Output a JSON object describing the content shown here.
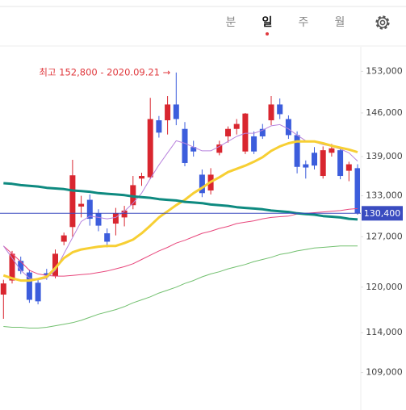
{
  "tabs": [
    "분",
    "일",
    "주",
    "월"
  ],
  "active_tab": 1,
  "chart_data": {
    "type": "candlestick",
    "log_scale": true,
    "ylim": [
      104500,
      157000
    ],
    "yticks": [
      {
        "value": 153000,
        "label": "153,000"
      },
      {
        "value": 146000,
        "label": "146,000"
      },
      {
        "value": 139000,
        "label": "139,000"
      },
      {
        "value": 133000,
        "label": "133,000"
      },
      {
        "value": 127000,
        "label": "127,000"
      },
      {
        "value": 120000,
        "label": "120,000"
      },
      {
        "value": 114000,
        "label": "114,000"
      },
      {
        "value": 109000,
        "label": "109,000"
      }
    ],
    "up_color": "#d9262f",
    "down_color": "#3c5ddc",
    "candles": {
      "open": [
        119000,
        120900,
        123600,
        122000,
        120600,
        121900,
        121500,
        126300,
        128400,
        131400,
        132400,
        130400,
        127500,
        128900,
        129800,
        131600,
        135600,
        135800,
        144800,
        144800,
        147400,
        143400,
        140500,
        136200,
        133800,
        139600,
        142200,
        143400,
        139800,
        142200,
        143400,
        144800,
        147400,
        145000,
        142400,
        137800,
        139600,
        136000,
        139600,
        140000,
        136800,
        137200
      ],
      "high": [
        121000,
        125000,
        124200,
        122400,
        121000,
        122500,
        125200,
        127600,
        138500,
        133000,
        133200,
        131000,
        128200,
        131200,
        131500,
        136000,
        136500,
        148500,
        145500,
        148800,
        152800,
        144500,
        141500,
        137000,
        137200,
        141500,
        143800,
        145000,
        146000,
        143000,
        144200,
        148800,
        148400,
        145600,
        143000,
        138400,
        140500,
        140600,
        141000,
        140500,
        138200,
        137800
      ],
      "low": [
        115800,
        120500,
        121800,
        117900,
        117700,
        121000,
        121200,
        125800,
        127000,
        129800,
        128600,
        127800,
        125500,
        127200,
        128500,
        131000,
        134500,
        135500,
        142000,
        142500,
        144000,
        137500,
        139000,
        132800,
        133200,
        139200,
        141200,
        142500,
        139400,
        139400,
        141800,
        144000,
        145000,
        141800,
        136400,
        135600,
        137000,
        135600,
        139000,
        135500,
        135200,
        130200
      ],
      "close": [
        120500,
        124600,
        122200,
        118300,
        118100,
        121600,
        124600,
        127200,
        136100,
        131800,
        129600,
        128600,
        126300,
        130400,
        130800,
        134600,
        136000,
        145000,
        142800,
        147400,
        145000,
        138000,
        139800,
        133400,
        136200,
        140900,
        143400,
        144200,
        145900,
        139800,
        142200,
        147400,
        145800,
        142400,
        137400,
        137300,
        137600,
        140000,
        140300,
        136000,
        137800,
        130400
      ]
    },
    "ma_lines": [
      {
        "color": "#b883dd",
        "values": [
          125700,
          124000,
          122300,
          121200,
          121000,
          121200,
          122300,
          124600,
          126900,
          129200,
          130000,
          129800,
          129600,
          129800,
          130700,
          131900,
          133400,
          135600,
          137700,
          139600,
          141500,
          141100,
          140500,
          139900,
          139900,
          140600,
          141400,
          142200,
          142700,
          142700,
          143200,
          143900,
          144100,
          143400,
          142400,
          141500,
          141300,
          140900,
          140600,
          140200,
          139600,
          138300
        ]
      },
      {
        "color": "#f7cf33",
        "values": [
          121600,
          121200,
          120900,
          120900,
          121100,
          121400,
          122600,
          124000,
          124800,
          125200,
          125400,
          125600,
          125700,
          125700,
          126100,
          126600,
          127500,
          128600,
          129800,
          130700,
          131600,
          132400,
          133400,
          134200,
          135100,
          135800,
          136600,
          137100,
          137600,
          138200,
          138900,
          139900,
          140600,
          141100,
          141400,
          141400,
          141400,
          141100,
          140700,
          140400,
          140100,
          139700
        ]
      },
      {
        "color": "#0e8a80",
        "values": [
          134900,
          134800,
          134600,
          134500,
          134400,
          134200,
          134100,
          134000,
          133800,
          133700,
          133600,
          133400,
          133300,
          133200,
          133100,
          132900,
          132800,
          132700,
          132500,
          132400,
          132300,
          132100,
          132000,
          131900,
          131700,
          131600,
          131500,
          131300,
          131200,
          131100,
          131000,
          130800,
          130700,
          130600,
          130400,
          130300,
          130200,
          130000,
          129900,
          129800,
          129600,
          129500
        ]
      },
      {
        "color": "#e8477c",
        "values": [
          125700,
          124600,
          123500,
          122300,
          121800,
          121600,
          121500,
          121500,
          121600,
          121700,
          121800,
          122000,
          122200,
          122500,
          122800,
          123200,
          123800,
          124400,
          125000,
          125500,
          126100,
          126500,
          127000,
          127500,
          127800,
          128200,
          128500,
          128900,
          129100,
          129300,
          129600,
          129800,
          129900,
          130000,
          130300,
          130400,
          130500,
          130600,
          130700,
          130800,
          131000,
          131100
        ]
      },
      {
        "color": "#72c06f",
        "values": [
          114800,
          114700,
          114700,
          114600,
          114600,
          114700,
          114900,
          115100,
          115300,
          115600,
          116000,
          116400,
          116700,
          117000,
          117400,
          117900,
          118300,
          118700,
          119200,
          119600,
          120000,
          120500,
          120900,
          121400,
          121800,
          122100,
          122500,
          122800,
          123100,
          123500,
          123800,
          124100,
          124500,
          124700,
          125000,
          125200,
          125400,
          125500,
          125600,
          125700,
          125700,
          125700
        ]
      }
    ],
    "last_price": {
      "value": 130400,
      "label": "130,400",
      "color": "#3a4cc0"
    },
    "annotation": {
      "text": "최고 152,800 - 2020.09.21 →",
      "color": "#e0393e"
    }
  }
}
